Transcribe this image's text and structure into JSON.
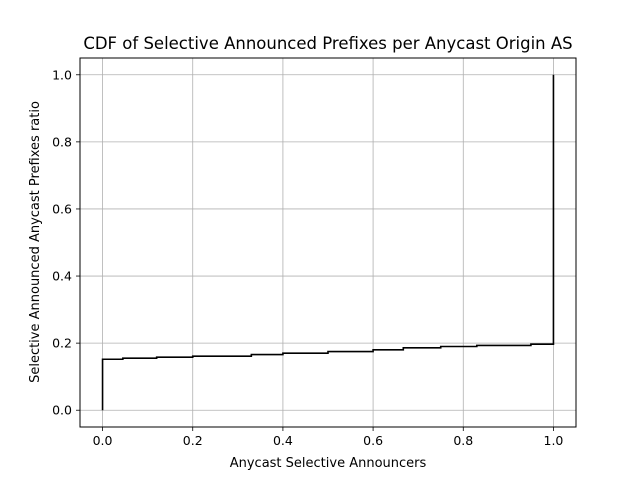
{
  "chart_data": {
    "type": "line",
    "title": "CDF of Selective Announced Prefixes per Anycast Origin AS",
    "xlabel": "Anycast Selective Announcers",
    "ylabel": "Selective Announced Anycast Prefixes ratio",
    "xlim": [
      -0.05,
      1.05
    ],
    "ylim": [
      -0.05,
      1.05
    ],
    "xticks": [
      0.0,
      0.2,
      0.4,
      0.6,
      0.8,
      1.0
    ],
    "yticks": [
      0.0,
      0.2,
      0.4,
      0.6,
      0.8,
      1.0
    ],
    "xtick_labels": [
      "0.0",
      "0.2",
      "0.4",
      "0.6",
      "0.8",
      "1.0"
    ],
    "ytick_labels": [
      "0.0",
      "0.2",
      "0.4",
      "0.6",
      "0.8",
      "1.0"
    ],
    "grid": true,
    "line_color": "#000000",
    "grid_color": "#b0b0b0",
    "series": [
      {
        "step": "post",
        "x": [
          0.0,
          0.0,
          0.045,
          0.12,
          0.2,
          0.33,
          0.4,
          0.5,
          0.6,
          0.667,
          0.75,
          0.83,
          0.95,
          1.0,
          1.0
        ],
        "y": [
          0.0,
          0.152,
          0.155,
          0.158,
          0.161,
          0.166,
          0.17,
          0.175,
          0.18,
          0.186,
          0.19,
          0.193,
          0.197,
          0.2,
          1.0
        ]
      }
    ]
  }
}
